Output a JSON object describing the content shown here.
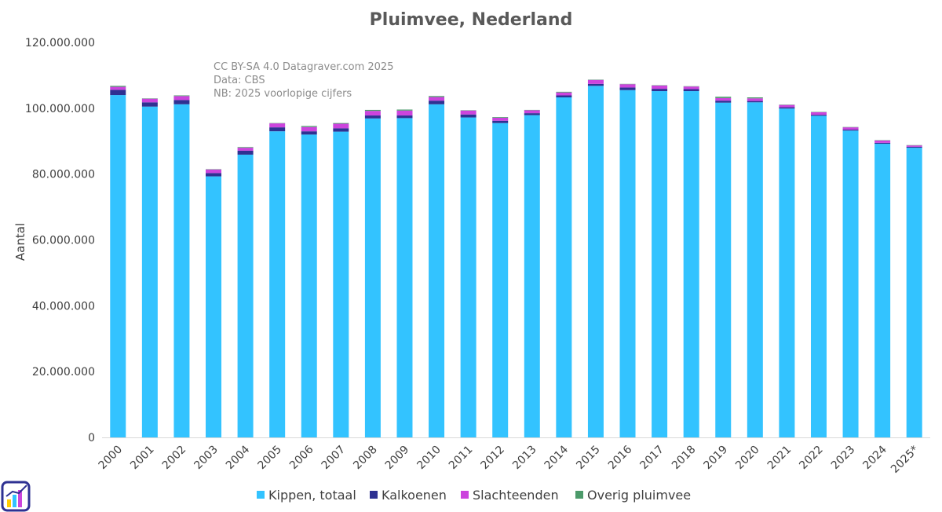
{
  "chart_data": {
    "type": "bar",
    "stacked": true,
    "title": "Pluimvee, Nederland",
    "xlabel": "",
    "ylabel": "Aantal",
    "ylim": [
      0,
      120000000
    ],
    "yticks": [
      0,
      20000000,
      40000000,
      60000000,
      80000000,
      100000000,
      120000000
    ],
    "ytick_labels": [
      "0",
      "20.000.000",
      "40.000.000",
      "60.000.000",
      "80.000.000",
      "100.000.000",
      "120.000.000"
    ],
    "grid": false,
    "legend_position": "bottom",
    "categories": [
      "2000",
      "2001",
      "2002",
      "2003",
      "2004",
      "2005",
      "2006",
      "2007",
      "2008",
      "2009",
      "2010",
      "2011",
      "2012",
      "2013",
      "2014",
      "2015",
      "2016",
      "2017",
      "2018",
      "2019",
      "2020",
      "2021",
      "2022",
      "2023",
      "2024",
      "2025*"
    ],
    "series": [
      {
        "name": "Kippen, totaal",
        "color": "#33c3ff",
        "values": [
          104000000,
          100500000,
          101200000,
          79300000,
          85900000,
          93000000,
          92000000,
          92900000,
          96900000,
          97000000,
          101200000,
          97200000,
          95500000,
          97900000,
          103300000,
          106800000,
          105500000,
          105200000,
          105200000,
          101700000,
          101800000,
          99900000,
          97700000,
          93200000,
          89200000,
          88000000
        ]
      },
      {
        "name": "Kalkoenen",
        "color": "#2e3192",
        "values": [
          1600000,
          1300000,
          1300000,
          1000000,
          1200000,
          1200000,
          1000000,
          1000000,
          900000,
          800000,
          1100000,
          900000,
          700000,
          600000,
          600000,
          600000,
          800000,
          700000,
          600000,
          600000,
          400000,
          400000,
          300000,
          300000,
          300000,
          300000
        ]
      },
      {
        "name": "Slachteenden",
        "color": "#cc44dd",
        "values": [
          900000,
          1100000,
          1200000,
          1100000,
          900000,
          1200000,
          1300000,
          1400000,
          1400000,
          1500000,
          1100000,
          1200000,
          900000,
          900000,
          900000,
          1200000,
          1000000,
          1000000,
          800000,
          800000,
          800000,
          700000,
          800000,
          700000,
          700000,
          400000
        ]
      },
      {
        "name": "Overig pluimvee",
        "color": "#4c9a6a",
        "values": [
          300000,
          100000,
          200000,
          100000,
          200000,
          100000,
          300000,
          200000,
          300000,
          300000,
          300000,
          100000,
          200000,
          100000,
          200000,
          100000,
          100000,
          100000,
          100000,
          400000,
          300000,
          100000,
          100000,
          100000,
          100000,
          100000
        ]
      }
    ],
    "annotations": [
      "CC BY-SA 4.0 Datagraver.com 2025",
      "Data: CBS",
      "NB: 2025 voorlopige cijfers"
    ]
  },
  "logo": {
    "name": "Datagraver"
  }
}
